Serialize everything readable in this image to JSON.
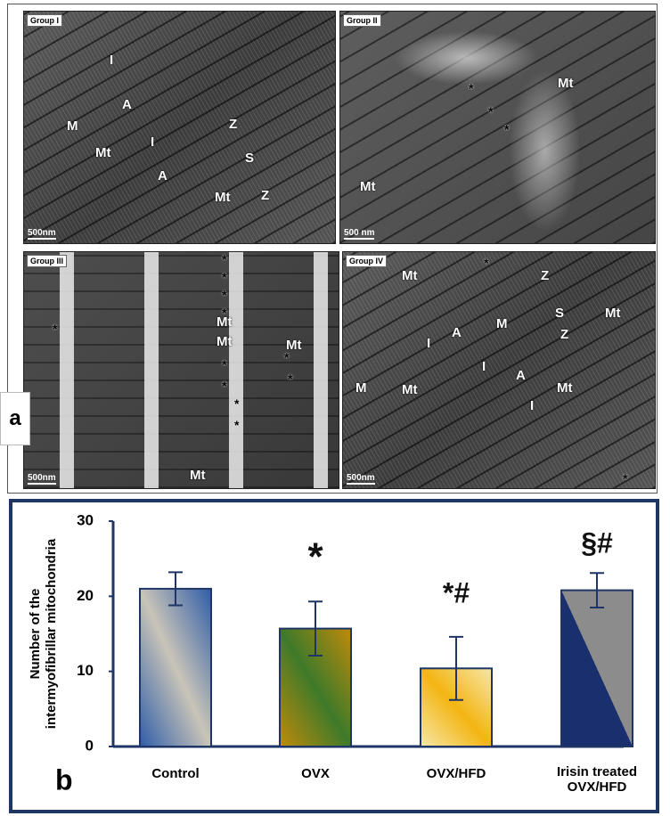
{
  "figure": {
    "label_a": "a",
    "label_b": "b",
    "micrographs": [
      {
        "title": "Group I",
        "scale": "500nm",
        "labels": [
          "I",
          "A",
          "M",
          "Mt",
          "I",
          "A",
          "Z",
          "S",
          "Z",
          "Mt"
        ]
      },
      {
        "title": "Group II",
        "scale": "500 nm",
        "labels": [
          "Mt",
          "Mt",
          "*",
          "*",
          "*"
        ]
      },
      {
        "title": "Group III",
        "scale": "500nm",
        "labels": [
          "Mt",
          "Mt",
          "Mt",
          "Mt",
          "*",
          "*",
          "*",
          "*",
          "*",
          "*",
          "*",
          "*",
          "*",
          "*",
          "*"
        ]
      },
      {
        "title": "Group IV",
        "scale": "500nm",
        "labels": [
          "Mt",
          "Z",
          "S",
          "Mt",
          "I",
          "A",
          "M",
          "Z",
          "I",
          "A",
          "M",
          "Mt",
          "Mt",
          "I",
          "*",
          "*"
        ]
      }
    ]
  },
  "chart_data": {
    "type": "bar",
    "ylabel": [
      "Number of the",
      "intermyofibrillar mitochondria"
    ],
    "categories": [
      "Control",
      "OVX",
      "OVX/HFD",
      "Irisin treated OVX/HFD"
    ],
    "values": [
      21,
      15.7,
      10.4,
      20.8
    ],
    "errors": [
      2.2,
      3.6,
      4.2,
      2.3
    ],
    "colors": [
      [
        "#2f5da8",
        "#c9c4b8"
      ],
      [
        "#c08a0a",
        "#3e7a2a"
      ],
      [
        "#f7e7a8",
        "#f3b512"
      ],
      [
        "#8c8c8c",
        "#1a2f6e"
      ]
    ],
    "annotations": [
      "*",
      "*#",
      "§#"
    ],
    "ylim": [
      0,
      30
    ],
    "yticks": [
      0,
      10,
      20,
      30
    ]
  }
}
